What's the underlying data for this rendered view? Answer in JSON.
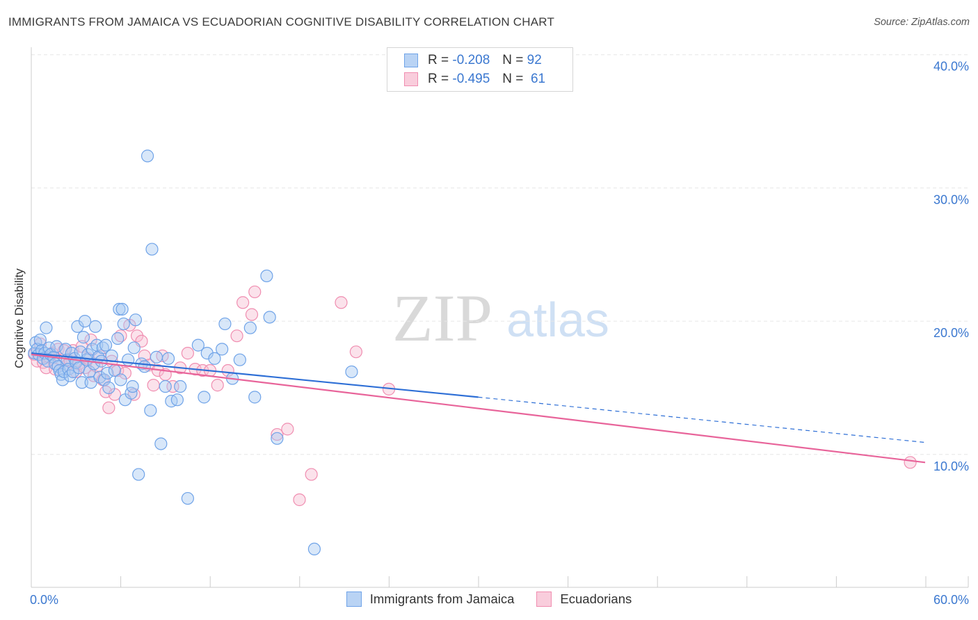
{
  "header": {
    "title": "IMMIGRANTS FROM JAMAICA VS ECUADORIAN COGNITIVE DISABILITY CORRELATION CHART",
    "source": "Source: ZipAtlas.com"
  },
  "legend": {
    "rows": [
      {
        "r_label": "R =",
        "r_value": "-0.208",
        "n_label": "N =",
        "n_value": "92",
        "color": "#6fa3e8"
      },
      {
        "r_label": "R =",
        "r_value": "-0.495",
        "n_label": "N =",
        "n_value": "61",
        "color": "#f08db0"
      }
    ]
  },
  "watermark": {
    "zip": "ZIP",
    "atlas": "atlas"
  },
  "colors": {
    "blue_fill": "#a9c9f2",
    "blue_stroke": "#6fa3e8",
    "blue_line": "#2e6fd6",
    "pink_fill": "#f7bfd2",
    "pink_stroke": "#f08db0",
    "pink_line": "#e8649a",
    "axis_text": "#3b78d0",
    "grid": "#e6e6e6"
  },
  "chart_data": {
    "type": "scatter",
    "title": "IMMIGRANTS FROM JAMAICA VS ECUADORIAN COGNITIVE DISABILITY CORRELATION CHART",
    "xlabel": "",
    "ylabel": "Cognitive Disability",
    "xlim": [
      0,
      60
    ],
    "ylim": [
      0,
      40
    ],
    "x_tick_labels": [
      "0.0%",
      "60.0%"
    ],
    "y_ticks": [
      10,
      20,
      30,
      40
    ],
    "y_tick_labels": [
      "10.0%",
      "20.0%",
      "30.0%",
      "40.0%"
    ],
    "grid": true,
    "legend_position": "bottom-center",
    "series": [
      {
        "name": "Immigrants from Jamaica",
        "r": -0.208,
        "n": 92,
        "trend": {
          "x0": 0,
          "y0": 17.6,
          "x1": 30,
          "y1": 14.3,
          "dashed_to_x": 60,
          "dashed_to_y": 10.9
        },
        "points": [
          [
            0.2,
            17.6
          ],
          [
            0.3,
            18.4
          ],
          [
            0.4,
            17.9
          ],
          [
            0.5,
            17.5
          ],
          [
            0.6,
            18.6
          ],
          [
            0.7,
            17.8
          ],
          [
            0.8,
            17.2
          ],
          [
            0.9,
            17.6
          ],
          [
            1.0,
            19.5
          ],
          [
            1.1,
            17.0
          ],
          [
            1.2,
            18.0
          ],
          [
            1.3,
            17.5
          ],
          [
            1.5,
            17.3
          ],
          [
            1.6,
            16.8
          ],
          [
            1.7,
            18.1
          ],
          [
            1.8,
            16.6
          ],
          [
            1.9,
            16.3
          ],
          [
            2.0,
            16.0
          ],
          [
            2.1,
            15.6
          ],
          [
            2.2,
            16.2
          ],
          [
            2.3,
            17.9
          ],
          [
            2.4,
            17.1
          ],
          [
            2.5,
            16.4
          ],
          [
            2.6,
            15.9
          ],
          [
            2.7,
            17.6
          ],
          [
            2.8,
            16.2
          ],
          [
            2.9,
            17.2
          ],
          [
            3.0,
            16.9
          ],
          [
            3.1,
            19.6
          ],
          [
            3.2,
            16.5
          ],
          [
            3.3,
            17.7
          ],
          [
            3.4,
            15.4
          ],
          [
            3.5,
            18.8
          ],
          [
            3.6,
            20.0
          ],
          [
            3.7,
            17.1
          ],
          [
            3.8,
            17.5
          ],
          [
            3.9,
            16.2
          ],
          [
            4.0,
            15.4
          ],
          [
            4.1,
            17.9
          ],
          [
            4.2,
            16.8
          ],
          [
            4.3,
            19.6
          ],
          [
            4.4,
            18.2
          ],
          [
            4.5,
            17.3
          ],
          [
            4.6,
            15.8
          ],
          [
            4.7,
            17.0
          ],
          [
            4.8,
            18.0
          ],
          [
            4.9,
            15.6
          ],
          [
            5.0,
            18.2
          ],
          [
            5.1,
            16.1
          ],
          [
            5.2,
            15.0
          ],
          [
            5.4,
            17.4
          ],
          [
            5.6,
            16.3
          ],
          [
            5.8,
            18.7
          ],
          [
            5.9,
            20.9
          ],
          [
            6.0,
            15.6
          ],
          [
            6.1,
            20.9
          ],
          [
            6.2,
            19.8
          ],
          [
            6.3,
            14.1
          ],
          [
            6.5,
            17.1
          ],
          [
            6.7,
            14.6
          ],
          [
            6.8,
            15.1
          ],
          [
            6.9,
            18.0
          ],
          [
            7.0,
            20.1
          ],
          [
            7.2,
            8.5
          ],
          [
            7.4,
            16.8
          ],
          [
            7.6,
            16.6
          ],
          [
            7.8,
            32.4
          ],
          [
            8.0,
            13.3
          ],
          [
            8.1,
            25.4
          ],
          [
            8.4,
            17.3
          ],
          [
            8.7,
            10.8
          ],
          [
            9.0,
            15.1
          ],
          [
            9.2,
            17.2
          ],
          [
            9.4,
            14.0
          ],
          [
            9.8,
            14.1
          ],
          [
            10.0,
            15.1
          ],
          [
            10.5,
            6.7
          ],
          [
            11.2,
            18.2
          ],
          [
            11.6,
            14.3
          ],
          [
            11.8,
            17.6
          ],
          [
            12.3,
            17.2
          ],
          [
            12.8,
            17.9
          ],
          [
            13.0,
            19.8
          ],
          [
            13.5,
            15.7
          ],
          [
            14.0,
            17.1
          ],
          [
            14.7,
            19.5
          ],
          [
            15.0,
            14.3
          ],
          [
            15.8,
            23.4
          ],
          [
            16.0,
            20.3
          ],
          [
            16.5,
            11.2
          ],
          [
            19.0,
            2.9
          ],
          [
            21.5,
            16.2
          ]
        ]
      },
      {
        "name": "Ecuadorians",
        "r": -0.495,
        "n": 61,
        "trend": {
          "x0": 0,
          "y0": 17.5,
          "x1": 60,
          "y1": 9.4
        },
        "points": [
          [
            0.2,
            17.5
          ],
          [
            0.4,
            17.0
          ],
          [
            0.6,
            18.3
          ],
          [
            0.8,
            16.9
          ],
          [
            1.0,
            16.5
          ],
          [
            1.2,
            17.3
          ],
          [
            1.4,
            17.6
          ],
          [
            1.6,
            16.4
          ],
          [
            1.8,
            17.9
          ],
          [
            2.0,
            17.1
          ],
          [
            2.2,
            17.8
          ],
          [
            2.4,
            16.7
          ],
          [
            2.6,
            17.0
          ],
          [
            2.8,
            17.8
          ],
          [
            3.0,
            16.2
          ],
          [
            3.2,
            16.8
          ],
          [
            3.4,
            18.1
          ],
          [
            3.6,
            16.5
          ],
          [
            3.8,
            17.2
          ],
          [
            4.0,
            18.6
          ],
          [
            4.2,
            15.9
          ],
          [
            4.4,
            16.6
          ],
          [
            4.6,
            17.4
          ],
          [
            4.8,
            15.6
          ],
          [
            5.0,
            14.7
          ],
          [
            5.2,
            13.5
          ],
          [
            5.4,
            17.0
          ],
          [
            5.6,
            14.5
          ],
          [
            5.8,
            16.3
          ],
          [
            6.0,
            18.9
          ],
          [
            6.3,
            16.1
          ],
          [
            6.6,
            19.7
          ],
          [
            6.9,
            14.5
          ],
          [
            7.1,
            18.9
          ],
          [
            7.4,
            18.5
          ],
          [
            7.6,
            17.4
          ],
          [
            7.9,
            16.7
          ],
          [
            8.2,
            15.2
          ],
          [
            8.5,
            16.3
          ],
          [
            8.8,
            17.4
          ],
          [
            9.0,
            16.0
          ],
          [
            9.5,
            15.1
          ],
          [
            10.0,
            16.5
          ],
          [
            10.5,
            17.6
          ],
          [
            11.0,
            16.4
          ],
          [
            11.5,
            16.3
          ],
          [
            12.0,
            16.3
          ],
          [
            12.5,
            15.2
          ],
          [
            13.2,
            16.3
          ],
          [
            13.8,
            18.9
          ],
          [
            14.2,
            21.4
          ],
          [
            14.8,
            20.5
          ],
          [
            15.0,
            22.2
          ],
          [
            16.5,
            11.5
          ],
          [
            17.2,
            11.9
          ],
          [
            18.0,
            6.6
          ],
          [
            18.8,
            8.5
          ],
          [
            20.8,
            21.4
          ],
          [
            21.8,
            17.7
          ],
          [
            24.0,
            14.9
          ],
          [
            59.0,
            9.4
          ]
        ]
      }
    ]
  }
}
